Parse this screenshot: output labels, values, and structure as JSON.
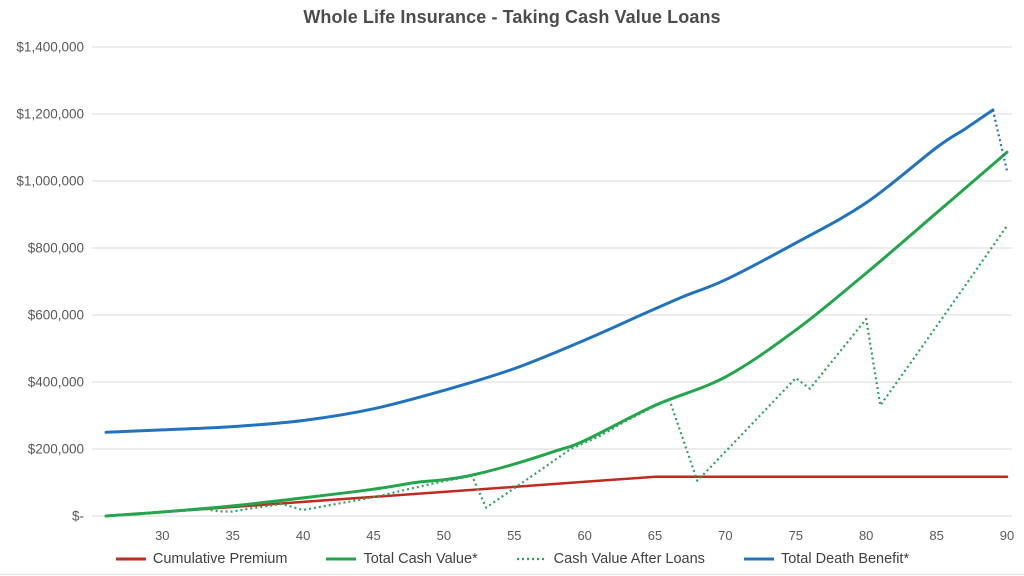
{
  "title": "Whole Life Insurance - Taking Cash Value Loans",
  "colors": {
    "background": "#ffffff",
    "gridline": "#d9d9d9",
    "axis_text": "#595959",
    "title_text": "#4c4c4c",
    "legend_text": "#404040",
    "cumulative_premium": "#c02a21",
    "total_cash_value": "#22a54b",
    "cash_value_after_loans": "#2ca45f",
    "total_death_benefit": "#2173bd"
  },
  "chart_data": {
    "type": "line",
    "title": "Whole Life Insurance - Taking Cash Value Loans",
    "xlabel": "",
    "ylabel": "",
    "legend_position": "bottom",
    "grid": true,
    "x_axis": {
      "range": [
        26,
        90
      ],
      "ticks": [
        30,
        35,
        40,
        45,
        50,
        55,
        60,
        65,
        70,
        75,
        80,
        85,
        90
      ]
    },
    "y_axis": {
      "range": [
        0,
        1400000
      ],
      "tick_values": [
        0,
        200000,
        400000,
        600000,
        800000,
        1000000,
        1200000,
        1400000
      ],
      "tick_labels": [
        "$-",
        "$200,000",
        "$400,000",
        "$600,000",
        "$800,000",
        "$1,000,000",
        "$1,200,000",
        "$1,400,000"
      ]
    },
    "series": [
      {
        "id": "cumulative-premium",
        "name": "Cumulative Premium",
        "color": "#c02a21",
        "style": "solid",
        "width": 2.5,
        "smooth": false,
        "in_legend": true,
        "points": [
          [
            26,
            0
          ],
          [
            30,
            12000
          ],
          [
            35,
            27000
          ],
          [
            40,
            42000
          ],
          [
            45,
            57000
          ],
          [
            50,
            72000
          ],
          [
            55,
            87000
          ],
          [
            60,
            102000
          ],
          [
            65,
            117000
          ],
          [
            70,
            117000
          ],
          [
            75,
            117000
          ],
          [
            80,
            117000
          ],
          [
            85,
            117000
          ],
          [
            90,
            117000
          ]
        ]
      },
      {
        "id": "total-cash-value",
        "name": "Total Cash Value*",
        "color": "#22a54b",
        "style": "solid",
        "width": 3,
        "smooth": true,
        "in_legend": true,
        "points": [
          [
            26,
            0
          ],
          [
            30,
            12000
          ],
          [
            35,
            30000
          ],
          [
            40,
            54000
          ],
          [
            45,
            80000
          ],
          [
            48,
            100000
          ],
          [
            50,
            108000
          ],
          [
            52,
            122000
          ],
          [
            55,
            155000
          ],
          [
            58,
            195000
          ],
          [
            60,
            225000
          ],
          [
            65,
            330000
          ],
          [
            70,
            415000
          ],
          [
            75,
            555000
          ],
          [
            80,
            725000
          ],
          [
            85,
            905000
          ],
          [
            90,
            1086000
          ]
        ]
      },
      {
        "id": "cash-value-after-loans",
        "name": "Cash Value After Loans",
        "color": "#2ca45f",
        "style": "dotted",
        "width": 2.2,
        "smooth": false,
        "in_legend": true,
        "points": [
          [
            26,
            0
          ],
          [
            30,
            12000
          ],
          [
            33,
            21000
          ],
          [
            34,
            14000
          ],
          [
            35,
            13000
          ],
          [
            36,
            21000
          ],
          [
            37,
            27000
          ],
          [
            38.5,
            36000
          ],
          [
            40,
            18000
          ],
          [
            42,
            33000
          ],
          [
            45,
            56000
          ],
          [
            48,
            85000
          ],
          [
            50,
            104000
          ],
          [
            51,
            112000
          ],
          [
            52,
            120000
          ],
          [
            53,
            25000
          ],
          [
            55,
            83000
          ],
          [
            57,
            141000
          ],
          [
            59,
            200000
          ],
          [
            61,
            237000
          ],
          [
            63,
            285000
          ],
          [
            66,
            350000
          ],
          [
            68,
            105000
          ],
          [
            70,
            192000
          ],
          [
            72,
            280000
          ],
          [
            74,
            368000
          ],
          [
            75,
            412000
          ],
          [
            76,
            380000
          ],
          [
            78,
            484000
          ],
          [
            80,
            588000
          ],
          [
            81,
            330000
          ],
          [
            83,
            448000
          ],
          [
            85,
            567000
          ],
          [
            87,
            686000
          ],
          [
            89,
            806000
          ],
          [
            90,
            866000
          ]
        ]
      },
      {
        "id": "total-death-benefit",
        "name": "Total Death Benefit*",
        "color": "#2173bd",
        "style": "solid",
        "width": 3,
        "smooth": true,
        "in_legend": true,
        "points": [
          [
            26,
            250000
          ],
          [
            30,
            257000
          ],
          [
            35,
            267000
          ],
          [
            40,
            285000
          ],
          [
            45,
            320000
          ],
          [
            50,
            375000
          ],
          [
            55,
            440000
          ],
          [
            60,
            525000
          ],
          [
            64,
            600000
          ],
          [
            67,
            655000
          ],
          [
            70,
            705000
          ],
          [
            75,
            815000
          ],
          [
            80,
            935000
          ],
          [
            85,
            1100000
          ],
          [
            87,
            1155000
          ],
          [
            89,
            1212000
          ]
        ]
      },
      {
        "id": "total-death-benefit-after-loans-drop",
        "name": "",
        "color": "#2173bd",
        "style": "dotted",
        "width": 2.2,
        "smooth": false,
        "in_legend": false,
        "points": [
          [
            89,
            1212000
          ],
          [
            90,
            1030000
          ]
        ]
      }
    ]
  }
}
